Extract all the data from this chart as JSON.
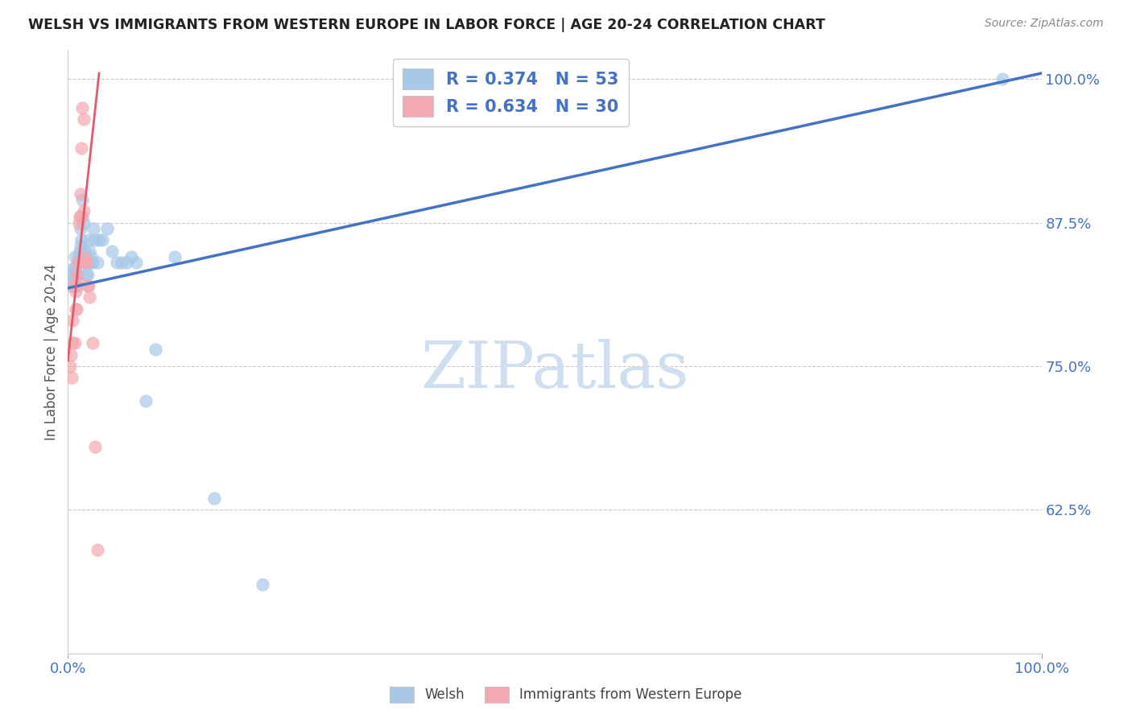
{
  "title": "WELSH VS IMMIGRANTS FROM WESTERN EUROPE IN LABOR FORCE | AGE 20-24 CORRELATION CHART",
  "source": "Source: ZipAtlas.com",
  "ylabel": "In Labor Force | Age 20-24",
  "welsh_color": "#a8c8e8",
  "immig_color": "#f4a8b0",
  "trend_welsh_color": "#4472c4",
  "trend_immig_color": "#e05a6a",
  "legend_welsh_label": "R = 0.374   N = 53",
  "legend_immig_label": "R = 0.634   N = 30",
  "legend_label_welsh": "Welsh",
  "legend_label_immig": "Immigrants from Western Europe",
  "background_color": "#ffffff",
  "grid_color": "#c8c8c8",
  "watermark_color": "#d0dff0",
  "title_color": "#222222",
  "source_color": "#888888",
  "axis_tick_color": "#4472c4",
  "ylabel_color": "#555555",
  "xlim": [
    0.0,
    1.0
  ],
  "ylim": [
    0.5,
    1.025
  ],
  "yticks": [
    0.625,
    0.75,
    0.875,
    1.0
  ],
  "welsh_trend_x": [
    0.0,
    1.0
  ],
  "welsh_trend_y": [
    0.818,
    1.005
  ],
  "immig_trend_x": [
    0.0,
    0.032
  ],
  "immig_trend_y": [
    0.755,
    1.005
  ],
  "welsh_x": [
    0.002,
    0.003,
    0.004,
    0.005,
    0.006,
    0.007,
    0.007,
    0.008,
    0.008,
    0.009,
    0.01,
    0.01,
    0.011,
    0.011,
    0.012,
    0.012,
    0.013,
    0.013,
    0.014,
    0.015,
    0.015,
    0.016,
    0.016,
    0.017,
    0.017,
    0.018,
    0.019,
    0.019,
    0.02,
    0.02,
    0.021,
    0.022,
    0.023,
    0.024,
    0.025,
    0.026,
    0.027,
    0.03,
    0.032,
    0.035,
    0.04,
    0.045,
    0.05,
    0.055,
    0.06,
    0.065,
    0.07,
    0.08,
    0.09,
    0.11,
    0.15,
    0.2,
    0.96
  ],
  "welsh_y": [
    0.82,
    0.83,
    0.825,
    0.835,
    0.82,
    0.835,
    0.845,
    0.83,
    0.82,
    0.83,
    0.82,
    0.83,
    0.845,
    0.84,
    0.84,
    0.85,
    0.87,
    0.855,
    0.86,
    0.88,
    0.895,
    0.875,
    0.84,
    0.85,
    0.84,
    0.84,
    0.84,
    0.83,
    0.84,
    0.83,
    0.86,
    0.85,
    0.84,
    0.845,
    0.84,
    0.87,
    0.86,
    0.84,
    0.86,
    0.86,
    0.87,
    0.85,
    0.84,
    0.84,
    0.84,
    0.845,
    0.84,
    0.72,
    0.765,
    0.845,
    0.635,
    0.56,
    1.0
  ],
  "immig_x": [
    0.002,
    0.003,
    0.004,
    0.005,
    0.005,
    0.006,
    0.007,
    0.008,
    0.008,
    0.009,
    0.009,
    0.01,
    0.01,
    0.011,
    0.012,
    0.013,
    0.013,
    0.014,
    0.015,
    0.016,
    0.016,
    0.017,
    0.018,
    0.019,
    0.02,
    0.021,
    0.022,
    0.025,
    0.028,
    0.03
  ],
  "immig_y": [
    0.75,
    0.76,
    0.74,
    0.79,
    0.77,
    0.82,
    0.77,
    0.815,
    0.8,
    0.83,
    0.8,
    0.84,
    0.825,
    0.875,
    0.88,
    0.88,
    0.9,
    0.94,
    0.975,
    0.965,
    0.885,
    0.845,
    0.84,
    0.84,
    0.82,
    0.82,
    0.81,
    0.77,
    0.68,
    0.59
  ]
}
